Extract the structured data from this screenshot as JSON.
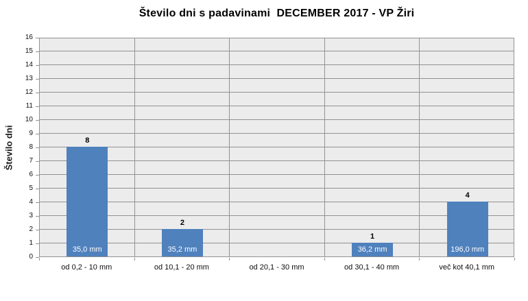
{
  "chart_data": {
    "type": "bar",
    "title": "Število dni s padavinami  DECEMBER 2017 - VP Žiri",
    "ylabel": "Število dni",
    "xlabel": "",
    "categories": [
      "od 0,2 - 10 mm",
      "od 10,1 - 20 mm",
      "od 20,1 - 30 mm",
      "od 30,1 - 40 mm",
      "več kot 40,1 mm"
    ],
    "values": [
      8,
      2,
      0,
      1,
      4
    ],
    "bar_labels": [
      "35,0 mm",
      "35,2 mm",
      "",
      "36,2 mm",
      "196,0 mm"
    ],
    "ylim": [
      0,
      16
    ],
    "ytick_step": 1,
    "yticks": [
      0,
      1,
      2,
      3,
      4,
      5,
      6,
      7,
      8,
      9,
      10,
      11,
      12,
      13,
      14,
      15,
      16
    ],
    "grid": true,
    "legend": "none",
    "colors": {
      "bar": "#4f81bd",
      "plot_background": "#ececec",
      "gridline": "#919191",
      "text": "#000000",
      "data_label_text": "#ffffff"
    }
  }
}
